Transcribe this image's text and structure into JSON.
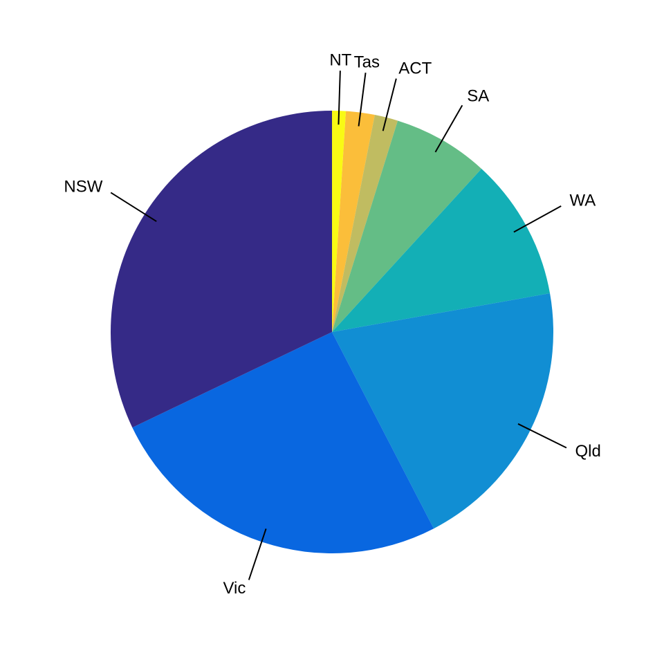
{
  "chart_data": {
    "type": "pie",
    "direction": "clockwise",
    "start": "top",
    "categories": [
      "NT",
      "Tas",
      "ACT",
      "SA",
      "WA",
      "Qld",
      "Vic",
      "NSW"
    ],
    "values": [
      1.0,
      2.1,
      1.7,
      7.0,
      10.4,
      20.2,
      25.5,
      32.1
    ],
    "colors": [
      "#f9fa14",
      "#fbbe3a",
      "#c0bc61",
      "#64bd86",
      "#13afb6",
      "#118ed3",
      "#0967e0",
      "#352a87"
    ]
  }
}
